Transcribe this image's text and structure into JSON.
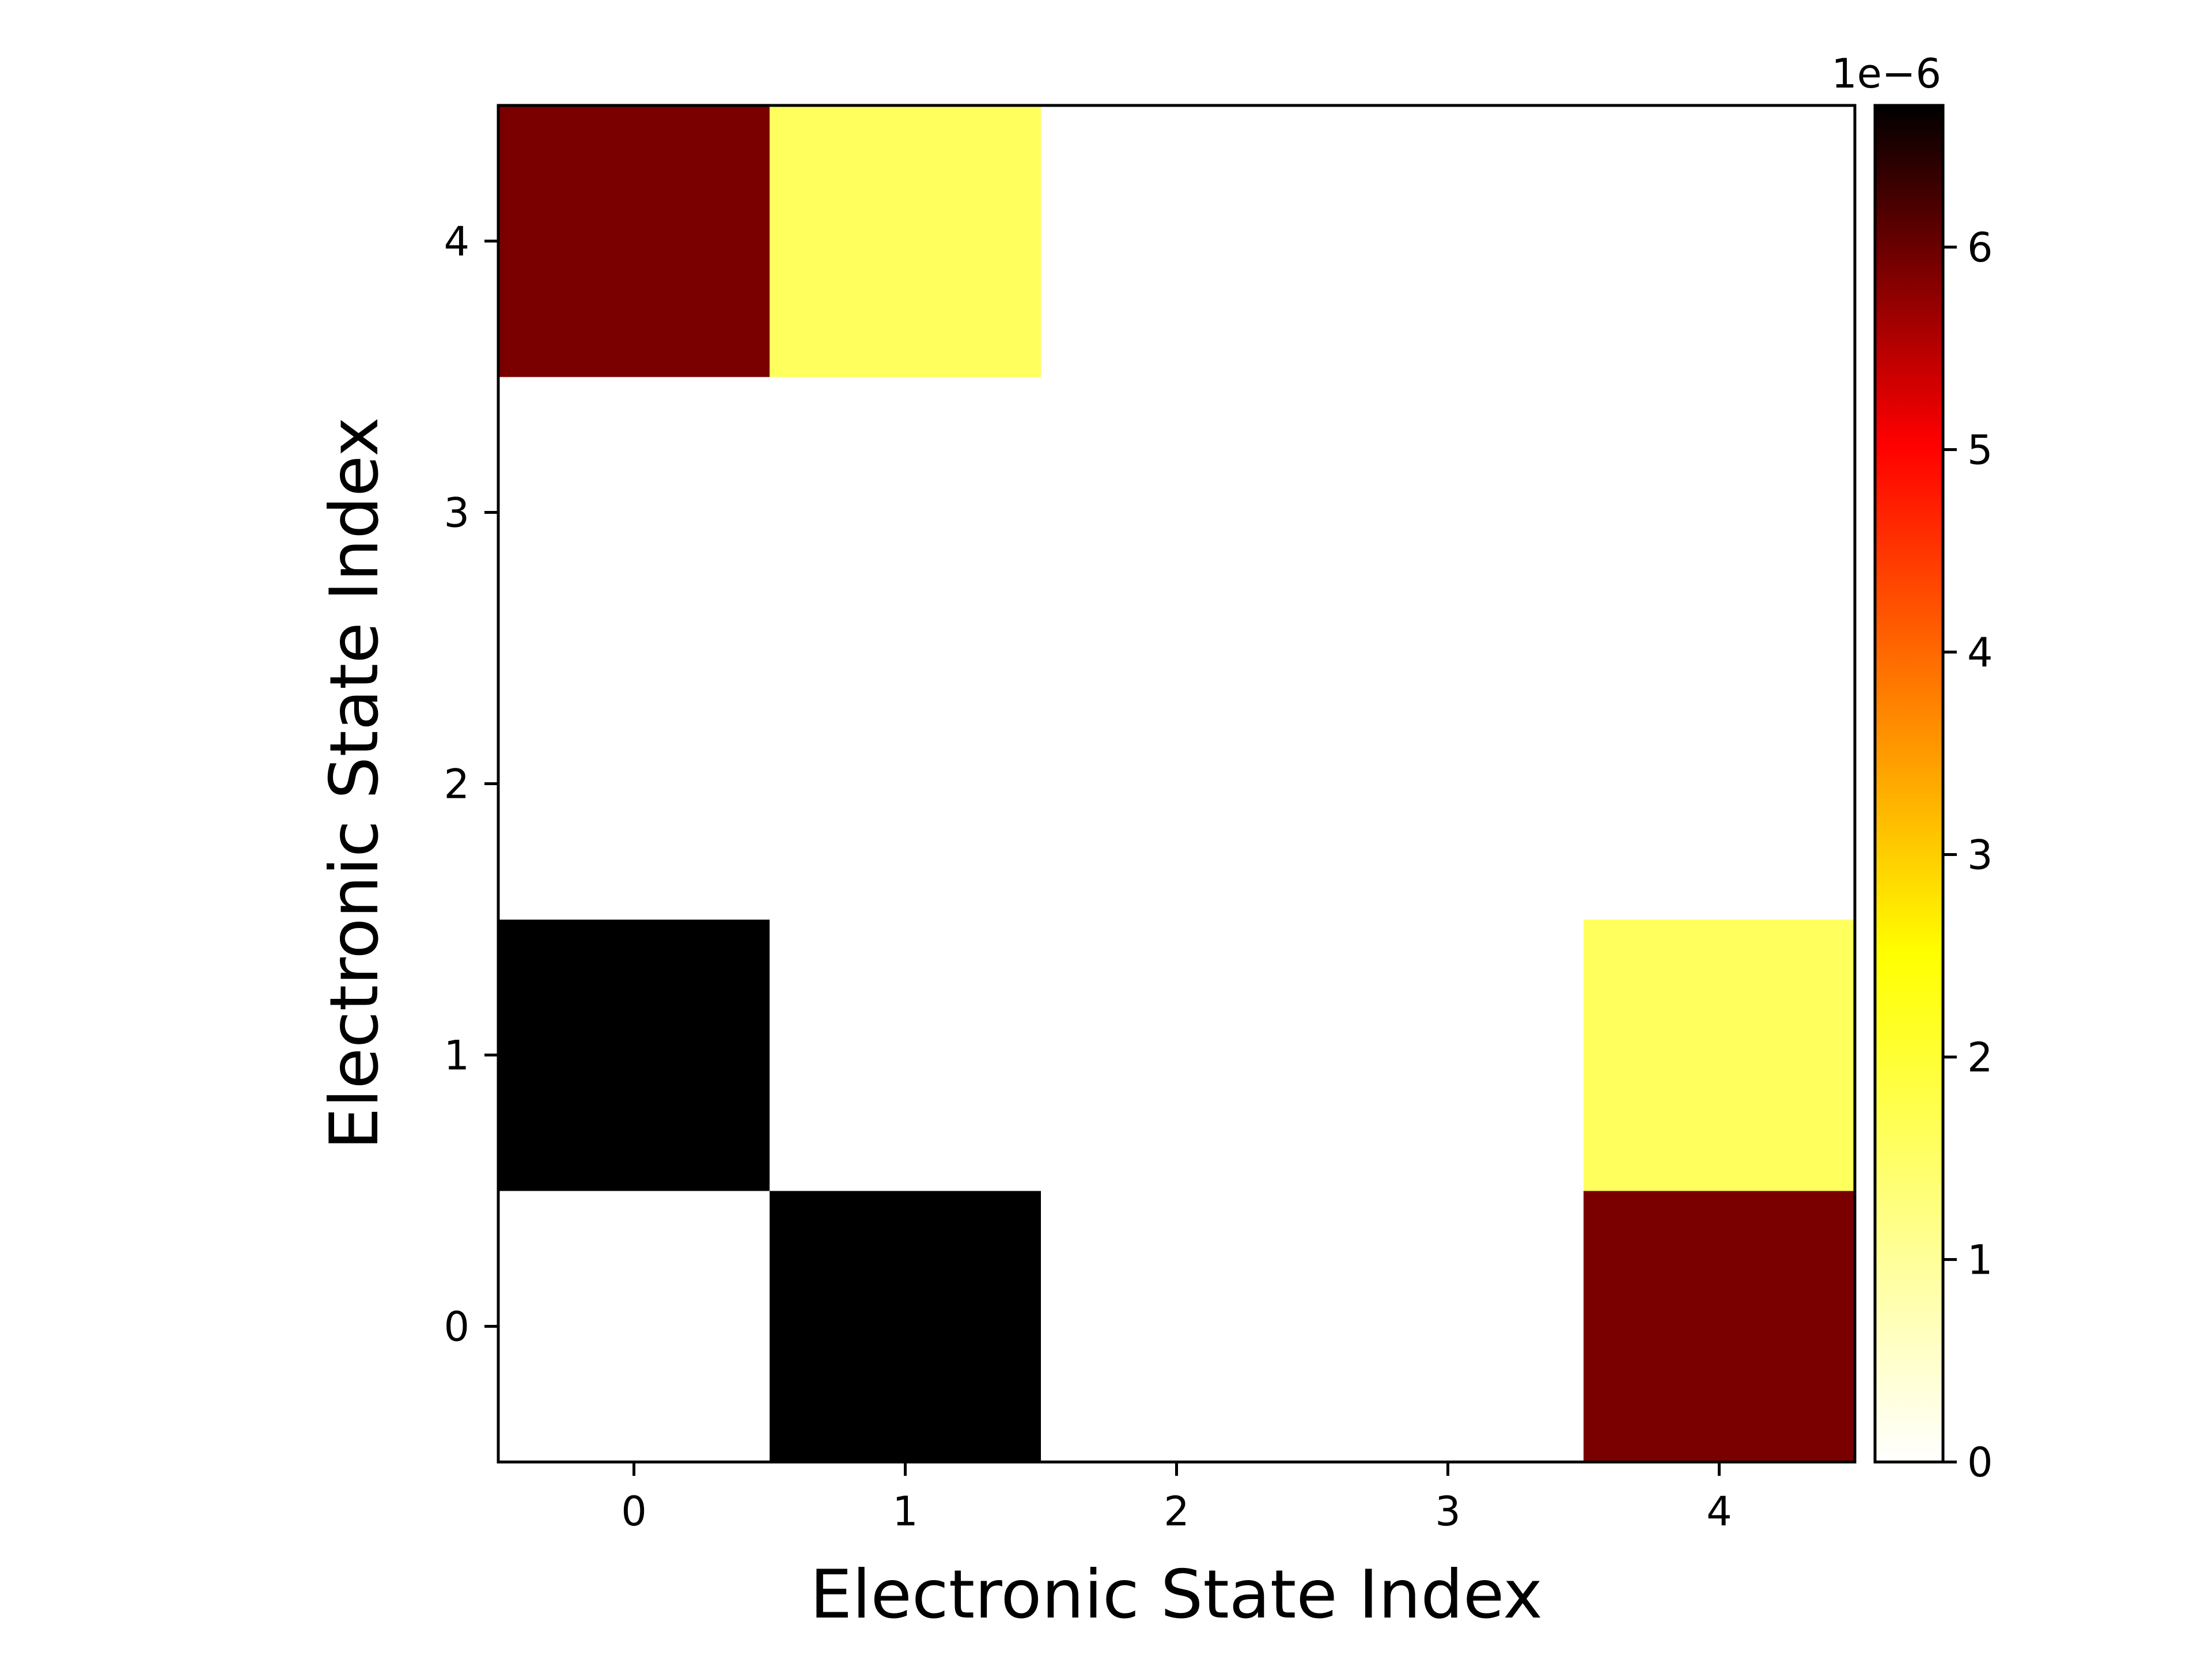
{
  "chart_data": {
    "type": "heatmap",
    "title": "",
    "xlabel": "Electronic State Index",
    "ylabel": "Electronic State Index",
    "x_ticks": [
      "0",
      "1",
      "2",
      "3",
      "4"
    ],
    "y_ticks": [
      "0",
      "1",
      "2",
      "3",
      "4"
    ],
    "matrix": [
      [
        0.0,
        6.7,
        0.0,
        0.0,
        5.9
      ],
      [
        6.7,
        0.0,
        0.0,
        0.0,
        1.6
      ],
      [
        0.0,
        0.0,
        0.0,
        0.0,
        0.0
      ],
      [
        0.0,
        0.0,
        0.0,
        0.0,
        0.0
      ],
      [
        5.9,
        1.6,
        0.0,
        0.0,
        0.0
      ]
    ],
    "matrix_note_rows": "row index = y value (row 0 at bottom)",
    "colormap": "hot_r",
    "colorbar": {
      "range": [
        0,
        6.7
      ],
      "ticks": [
        "0",
        "1",
        "2",
        "3",
        "4",
        "5",
        "6"
      ],
      "scale_label": "1e−6"
    },
    "grid": false,
    "colors": {
      "cmap_stops": [
        "#ffffff",
        "#ffff00",
        "#ff0000",
        "#000000"
      ]
    }
  }
}
